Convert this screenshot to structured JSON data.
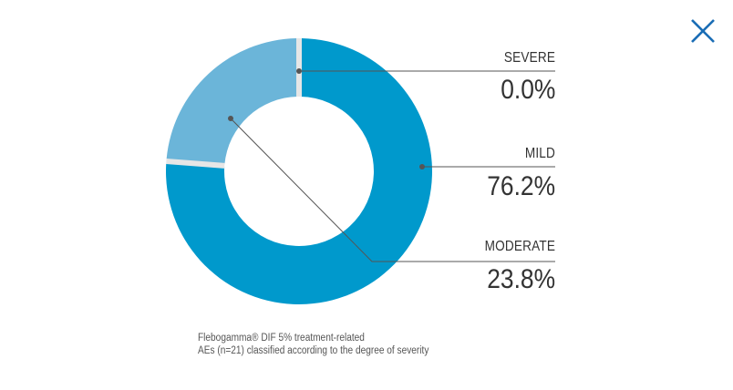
{
  "close_icon": "close-x-icon",
  "colors": {
    "mild": "#0099cc",
    "moderate": "#6bb5d9",
    "severe": "#d9d9d9",
    "gap": "#e6e6e6",
    "leader": "#555555",
    "close": "#1a6db5"
  },
  "chart_data": {
    "type": "pie",
    "style": "donut",
    "slices": [
      {
        "label": "SEVERE",
        "value": 0.0,
        "display": "0.0%"
      },
      {
        "label": "MILD",
        "value": 76.2,
        "display": "76.2%"
      },
      {
        "label": "MODERATE",
        "value": 23.8,
        "display": "23.8%"
      }
    ],
    "caption": [
      "Flebogamma® DIF 5% treatment-related",
      "AEs (n=21) classified according to the degree of severity"
    ]
  }
}
